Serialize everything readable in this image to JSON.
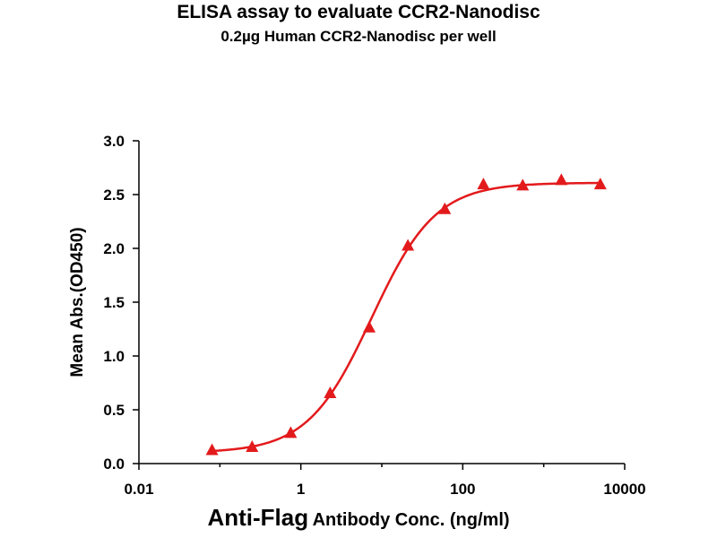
{
  "title": "ELISA assay to evaluate CCR2-Nanodisc",
  "subtitle": "0.2µg Human CCR2-Nanodisc per well",
  "chart_data": {
    "type": "scatter",
    "title": "ELISA assay to evaluate CCR2-Nanodisc",
    "subtitle": "0.2µg Human CCR2-Nanodisc per well",
    "xlabel_main": "Anti-Flag",
    "xlabel_rest": "Antibody Conc. (ng/ml)",
    "ylabel": "Mean Abs.(OD450)",
    "xscale": "log",
    "xlim": [
      0.01,
      10000
    ],
    "ylim": [
      0,
      3.0
    ],
    "xticks": [
      0.01,
      1,
      100,
      10000
    ],
    "xtick_labels": [
      "0.01",
      "1",
      "100",
      "10000"
    ],
    "yticks": [
      0.0,
      0.5,
      1.0,
      1.5,
      2.0,
      2.5,
      3.0
    ],
    "ytick_labels": [
      "0.0",
      "0.5",
      "1.0",
      "1.5",
      "2.0",
      "2.5",
      "3.0"
    ],
    "grid": false,
    "marker": "triangle",
    "color": "#e31a1c",
    "series": [
      {
        "x": [
          0.08,
          0.25,
          0.75,
          2.3,
          7.0,
          21.0,
          60.0,
          180.0,
          550.0,
          1650.0,
          5000.0
        ],
        "y": [
          0.12,
          0.15,
          0.28,
          0.65,
          1.26,
          2.02,
          2.36,
          2.59,
          2.58,
          2.63,
          2.59
        ]
      }
    ],
    "fit": {
      "model": "4PL",
      "bottom": 0.1,
      "top": 2.61,
      "ec50": 7.5,
      "hill": 1.1
    }
  }
}
